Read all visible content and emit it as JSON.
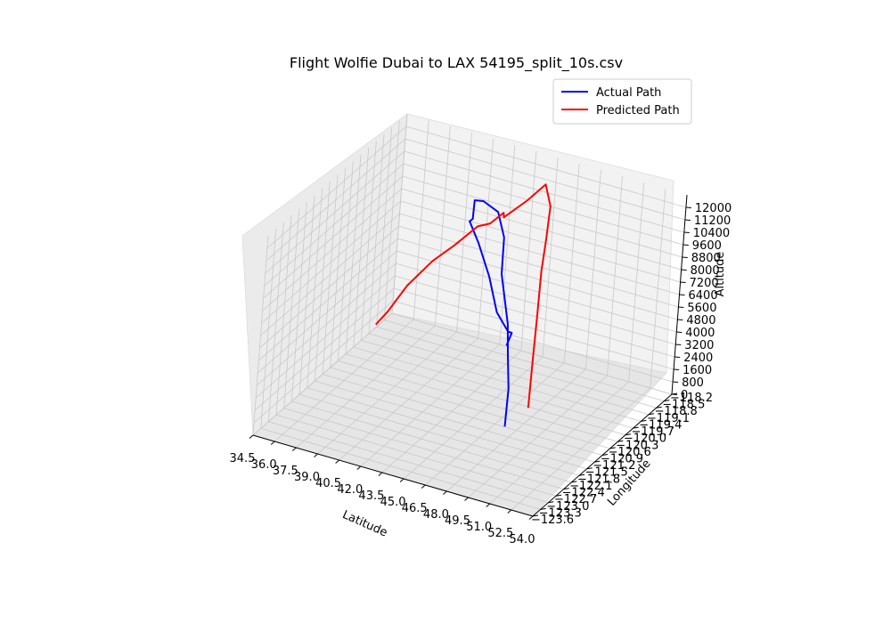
{
  "chart_data": {
    "type": "line",
    "projection": "3d",
    "title": "Flight Wolfie Dubai to LAX 54195_split_10s.csv",
    "xlabel": "Latitude",
    "ylabel": "Longitude",
    "zlabel": "Altitude",
    "grid": true,
    "legend_position": "top-right",
    "x_ticks": [
      "34.5",
      "36.0",
      "37.5",
      "39.0",
      "40.5",
      "42.0",
      "43.5",
      "45.0",
      "46.5",
      "48.0",
      "49.5",
      "51.0",
      "52.5",
      "54.0"
    ],
    "y_ticks": [
      "−123.6",
      "−123.3",
      "−123.0",
      "−122.7",
      "−122.4",
      "−122.1",
      "−121.8",
      "−121.5",
      "−121.2",
      "−120.9",
      "−120.6",
      "−120.3",
      "−120.0",
      "−119.7",
      "−119.4",
      "−119.1",
      "−118.8",
      "−118.5",
      "−118.2"
    ],
    "z_ticks": [
      "0",
      "800",
      "1600",
      "2400",
      "3200",
      "4000",
      "4800",
      "5600",
      "6400",
      "7200",
      "8000",
      "8800",
      "9600",
      "10400",
      "11200",
      "12000"
    ],
    "series": [
      {
        "name": "Actual Path",
        "color": "#0000ff",
        "points": [
          [
            44.6,
            -119.5,
            2500
          ],
          [
            44.9,
            -119.5,
            3400
          ],
          [
            44.8,
            -119.6,
            3600
          ],
          [
            44.1,
            -119.7,
            4800
          ],
          [
            43.4,
            -119.7,
            6900
          ],
          [
            42.5,
            -119.7,
            8800
          ],
          [
            42.1,
            -119.9,
            10400
          ],
          [
            42.3,
            -119.9,
            10600
          ],
          [
            42.5,
            -120.0,
            12000
          ],
          [
            43.1,
            -120.0,
            12100
          ],
          [
            44.0,
            -119.9,
            11500
          ],
          [
            44.7,
            -120.0,
            10200
          ],
          [
            45.7,
            -120.6,
            9000
          ],
          [
            47.2,
            -121.1,
            6900
          ],
          [
            47.7,
            -121.3,
            5300
          ],
          [
            48.4,
            -121.6,
            3800
          ],
          [
            49.0,
            -122.0,
            2100
          ]
        ]
      },
      {
        "name": "Predicted Path",
        "color": "#ff0000",
        "points": [
          [
            36.4,
            -120.0,
            2400
          ],
          [
            37.3,
            -120.1,
            3600
          ],
          [
            38.5,
            -120.1,
            5600
          ],
          [
            40.1,
            -120.1,
            7600
          ],
          [
            41.7,
            -120.2,
            9200
          ],
          [
            43.0,
            -120.1,
            10600
          ],
          [
            44.0,
            -120.2,
            11200
          ],
          [
            45.2,
            -120.4,
            12500
          ],
          [
            45.4,
            -120.5,
            12400
          ],
          [
            46.4,
            -120.2,
            13300
          ],
          [
            47.1,
            -119.9,
            14100
          ],
          [
            47.7,
            -120.0,
            13000
          ],
          [
            47.9,
            -120.2,
            11100
          ],
          [
            48.4,
            -120.6,
            9900
          ],
          [
            49.0,
            -121.0,
            7700
          ],
          [
            49.9,
            -121.6,
            5800
          ],
          [
            50.5,
            -122.0,
            3700
          ]
        ]
      }
    ]
  }
}
